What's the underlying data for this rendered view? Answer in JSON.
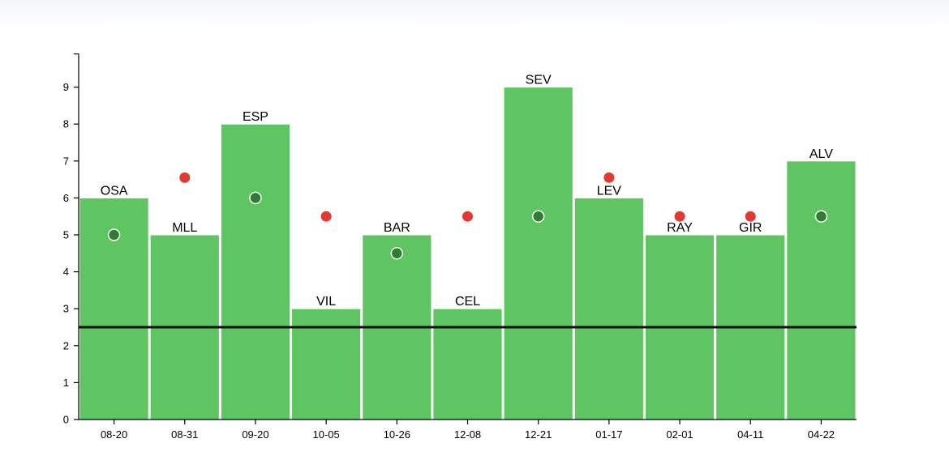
{
  "chart_data": {
    "type": "bar",
    "categories": [
      "08-20",
      "08-31",
      "09-20",
      "10-05",
      "10-26",
      "12-08",
      "12-21",
      "01-17",
      "02-01",
      "04-11",
      "04-22"
    ],
    "bar_labels": [
      "OSA",
      "MLL",
      "ESP",
      "VIL",
      "BAR",
      "CEL",
      "SEV",
      "LEV",
      "RAY",
      "GIR",
      "ALV"
    ],
    "values": [
      6,
      5,
      8,
      3,
      5,
      3,
      9,
      6,
      5,
      5,
      7
    ],
    "markers": [
      {
        "index": 0,
        "value": 5.0,
        "kind": "inside"
      },
      {
        "index": 1,
        "value": 6.55,
        "kind": "outside"
      },
      {
        "index": 2,
        "value": 6.0,
        "kind": "inside"
      },
      {
        "index": 3,
        "value": 5.5,
        "kind": "outside"
      },
      {
        "index": 4,
        "value": 4.5,
        "kind": "inside"
      },
      {
        "index": 5,
        "value": 5.5,
        "kind": "outside"
      },
      {
        "index": 6,
        "value": 5.5,
        "kind": "inside"
      },
      {
        "index": 7,
        "value": 6.55,
        "kind": "outside"
      },
      {
        "index": 8,
        "value": 5.5,
        "kind": "outside"
      },
      {
        "index": 9,
        "value": 5.5,
        "kind": "outside"
      },
      {
        "index": 10,
        "value": 5.5,
        "kind": "inside"
      }
    ],
    "reference_line": 2.5,
    "ylim": [
      0,
      9.9
    ],
    "yticks": [
      0,
      1,
      2,
      3,
      4,
      5,
      6,
      7,
      8,
      9
    ],
    "title": "",
    "xlabel": "",
    "ylabel": "",
    "grid": false,
    "colors": {
      "bar": "#5fc462",
      "bar_edge": "#ffffff",
      "marker_inside": "#2e7d32",
      "marker_inside_stroke": "#ffffff",
      "marker_outside": "#e23a2e",
      "reference_line": "#111111",
      "axis": "#000000"
    }
  }
}
